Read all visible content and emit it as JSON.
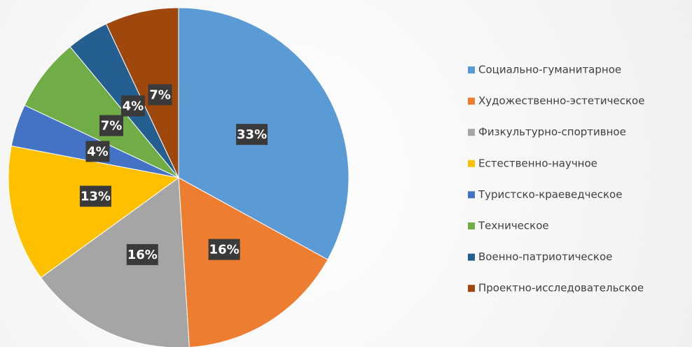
{
  "chart_data": {
    "type": "pie",
    "categories": [
      "Социально-гуманитарное",
      "Художественно-эстетическое",
      "Физкультурно-спортивное",
      "Естественно-научное",
      "Туристско-краеведческое",
      "Техническое",
      "Военно-патриотическое",
      "Проектно-исследовательское"
    ],
    "values": [
      33,
      16,
      16,
      13,
      4,
      7,
      4,
      7
    ],
    "value_labels": [
      "33%",
      "16%",
      "16%",
      "13%",
      "4%",
      "7%",
      "4%",
      "7%"
    ],
    "colors": [
      "#5b9bd5",
      "#ed7d31",
      "#a5a5a5",
      "#ffc000",
      "#4472c4",
      "#70ad47",
      "#255e91",
      "#9e480e"
    ],
    "legend": "right"
  }
}
